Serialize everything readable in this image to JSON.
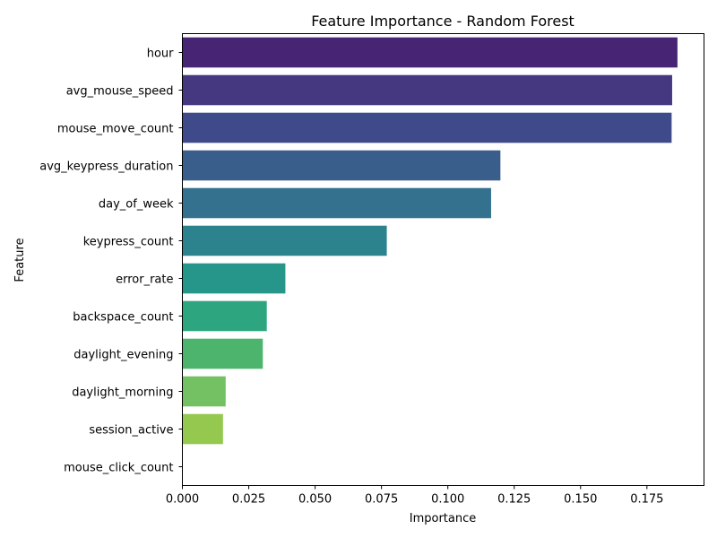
{
  "chart_data": {
    "type": "bar",
    "orientation": "horizontal",
    "title": "Feature Importance - Random Forest",
    "xlabel": "Importance",
    "ylabel": "Feature",
    "xlim": [
      0,
      0.1965
    ],
    "xticks": [
      "0.000",
      "0.025",
      "0.050",
      "0.075",
      "0.100",
      "0.125",
      "0.150",
      "0.175"
    ],
    "categories": [
      "hour",
      "avg_mouse_speed",
      "mouse_move_count",
      "avg_keypress_duration",
      "day_of_week",
      "keypress_count",
      "error_rate",
      "backspace_count",
      "daylight_evening",
      "daylight_morning",
      "session_active",
      "mouse_click_count"
    ],
    "values": [
      0.1865,
      0.1845,
      0.1843,
      0.1198,
      0.1163,
      0.077,
      0.0388,
      0.0318,
      0.0303,
      0.0163,
      0.0153,
      0.0
    ],
    "colors": [
      "#482475",
      "#453880",
      "#3f4a8a",
      "#3a5e8c",
      "#33718e",
      "#2c838e",
      "#26968b",
      "#2da67f",
      "#4db46e",
      "#74c164",
      "#95c84e",
      "#b9d532"
    ],
    "grid": false,
    "legend": "none"
  }
}
